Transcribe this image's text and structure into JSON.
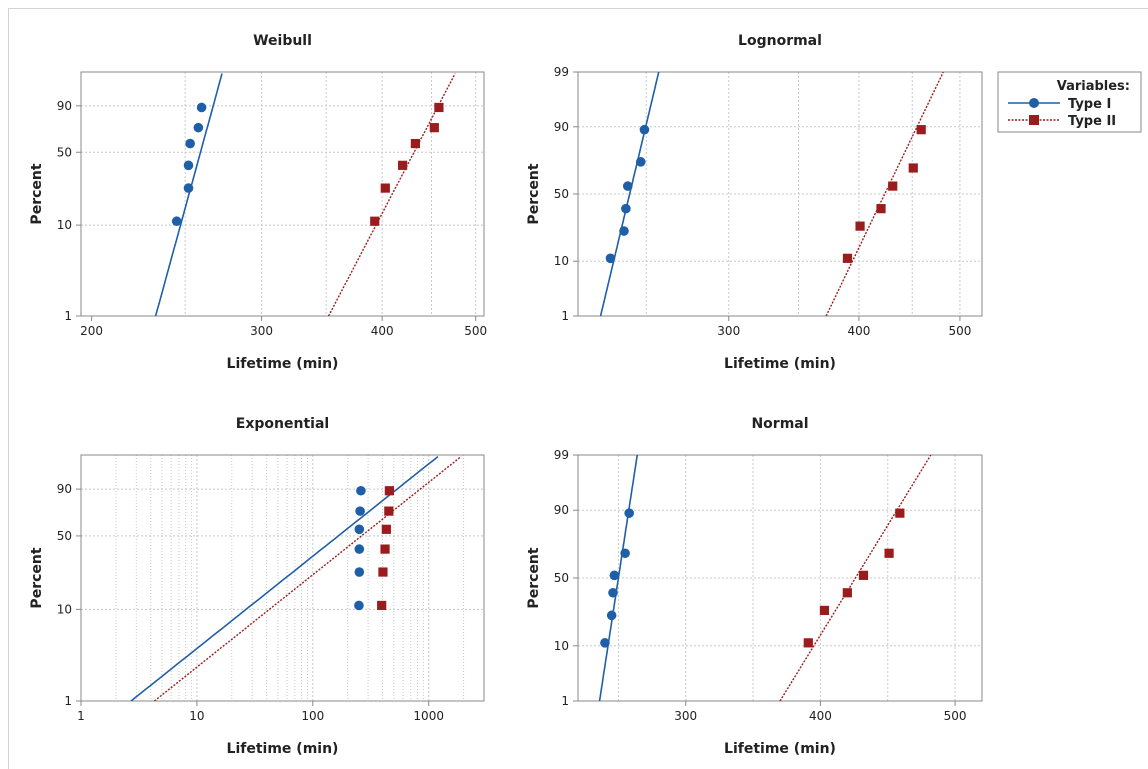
{
  "colors": {
    "type1": "#1f5fa8",
    "type2": "#9b1c1c",
    "grid": "#c8c8c8",
    "axis": "#888888"
  },
  "legend": {
    "title": "Variables:",
    "items": [
      {
        "label": "Type I",
        "marker": "circle",
        "line": "solid",
        "color": "#1f5fa8"
      },
      {
        "label": "Type II",
        "marker": "square",
        "line": "dotted",
        "color": "#9b1c1c"
      }
    ]
  },
  "chart_data": [
    {
      "id": "weibull",
      "type": "scatter",
      "title": "Weibull",
      "xlabel": "Lifetime (min)",
      "ylabel": "Percent",
      "xscale": "log",
      "xlim": [
        195,
        510
      ],
      "xticks": [
        200,
        300,
        400,
        500
      ],
      "yscale": "weibull",
      "ylim": [
        1,
        99
      ],
      "yticks": [
        1,
        10,
        50,
        90
      ],
      "series": [
        {
          "name": "Type I",
          "points": [
            [
              245,
              11
            ],
            [
              252,
              24
            ],
            [
              252,
              39
            ],
            [
              253,
              58
            ],
            [
              258,
              73
            ],
            [
              260,
              89
            ]
          ],
          "fit": [
            [
              233,
              1
            ],
            [
              273,
              99.5
            ]
          ]
        },
        {
          "name": "Type II",
          "points": [
            [
              393,
              11
            ],
            [
              403,
              24
            ],
            [
              420,
              39
            ],
            [
              433,
              58
            ],
            [
              453,
              73
            ],
            [
              458,
              89
            ]
          ],
          "fit": [
            [
              352,
              1
            ],
            [
              476,
              99.5
            ]
          ]
        }
      ]
    },
    {
      "id": "lognormal",
      "type": "scatter",
      "title": "Lognormal",
      "xlabel": "Lifetime (min)",
      "ylabel": "Percent",
      "xscale": "log",
      "xlim": [
        215,
        525
      ],
      "xticks": [
        300,
        400,
        500
      ],
      "yscale": "probit",
      "ylim": [
        1,
        99
      ],
      "yticks": [
        1,
        10,
        50,
        90,
        99
      ],
      "series": [
        {
          "name": "Type I",
          "points": [
            [
              231,
              11
            ],
            [
              238,
              24
            ],
            [
              239,
              39
            ],
            [
              240,
              56
            ],
            [
              247,
              73
            ],
            [
              249,
              89
            ]
          ],
          "fit": [
            [
              226,
              1
            ],
            [
              257,
              99
            ]
          ]
        },
        {
          "name": "Type II",
          "points": [
            [
              390,
              11
            ],
            [
              401,
              27
            ],
            [
              420,
              39
            ],
            [
              431,
              56
            ],
            [
              451,
              69
            ],
            [
              459,
              89
            ]
          ],
          "fit": [
            [
              372,
              1
            ],
            [
              482,
              99
            ]
          ]
        }
      ]
    },
    {
      "id": "exponential",
      "type": "scatter",
      "title": "Exponential",
      "xlabel": "Lifetime (min)",
      "ylabel": "Percent",
      "xscale": "log",
      "xlim": [
        1,
        3000
      ],
      "xticks": [
        1,
        10,
        100,
        1000
      ],
      "yscale": "exponential",
      "ylim": [
        1,
        99
      ],
      "yticks": [
        1,
        10,
        50,
        90
      ],
      "series": [
        {
          "name": "Type I",
          "points": [
            [
              250,
              11
            ],
            [
              252,
              24
            ],
            [
              252,
              39
            ],
            [
              252,
              56
            ],
            [
              256,
              73
            ],
            [
              260,
              89
            ]
          ],
          "fit": [
            [
              2.7,
              1
            ],
            [
              1200,
              99.5
            ]
          ]
        },
        {
          "name": "Type II",
          "points": [
            [
              393,
              11
            ],
            [
              403,
              24
            ],
            [
              420,
              39
            ],
            [
              431,
              56
            ],
            [
              453,
              73
            ],
            [
              458,
              89
            ]
          ],
          "fit": [
            [
              4.3,
              1
            ],
            [
              1900,
              99.5
            ]
          ]
        }
      ]
    },
    {
      "id": "normal",
      "type": "scatter",
      "title": "Normal",
      "xlabel": "Lifetime (min)",
      "ylabel": "Percent",
      "xscale": "linear",
      "xlim": [
        220,
        520
      ],
      "xticks": [
        300,
        400,
        500
      ],
      "yscale": "probit",
      "ylim": [
        1,
        99
      ],
      "yticks": [
        1,
        10,
        50,
        90,
        99
      ],
      "series": [
        {
          "name": "Type I",
          "points": [
            [
              240,
              11
            ],
            [
              245,
              24
            ],
            [
              246,
              39
            ],
            [
              247,
              52
            ],
            [
              255,
              68
            ],
            [
              258,
              89
            ]
          ],
          "fit": [
            [
              236,
              1
            ],
            [
              264,
              99
            ]
          ]
        },
        {
          "name": "Type II",
          "points": [
            [
              391,
              11
            ],
            [
              403,
              27
            ],
            [
              420,
              39
            ],
            [
              432,
              52
            ],
            [
              451,
              68
            ],
            [
              459,
              89
            ]
          ],
          "fit": [
            [
              370,
              1
            ],
            [
              482,
              99
            ]
          ]
        }
      ]
    }
  ]
}
